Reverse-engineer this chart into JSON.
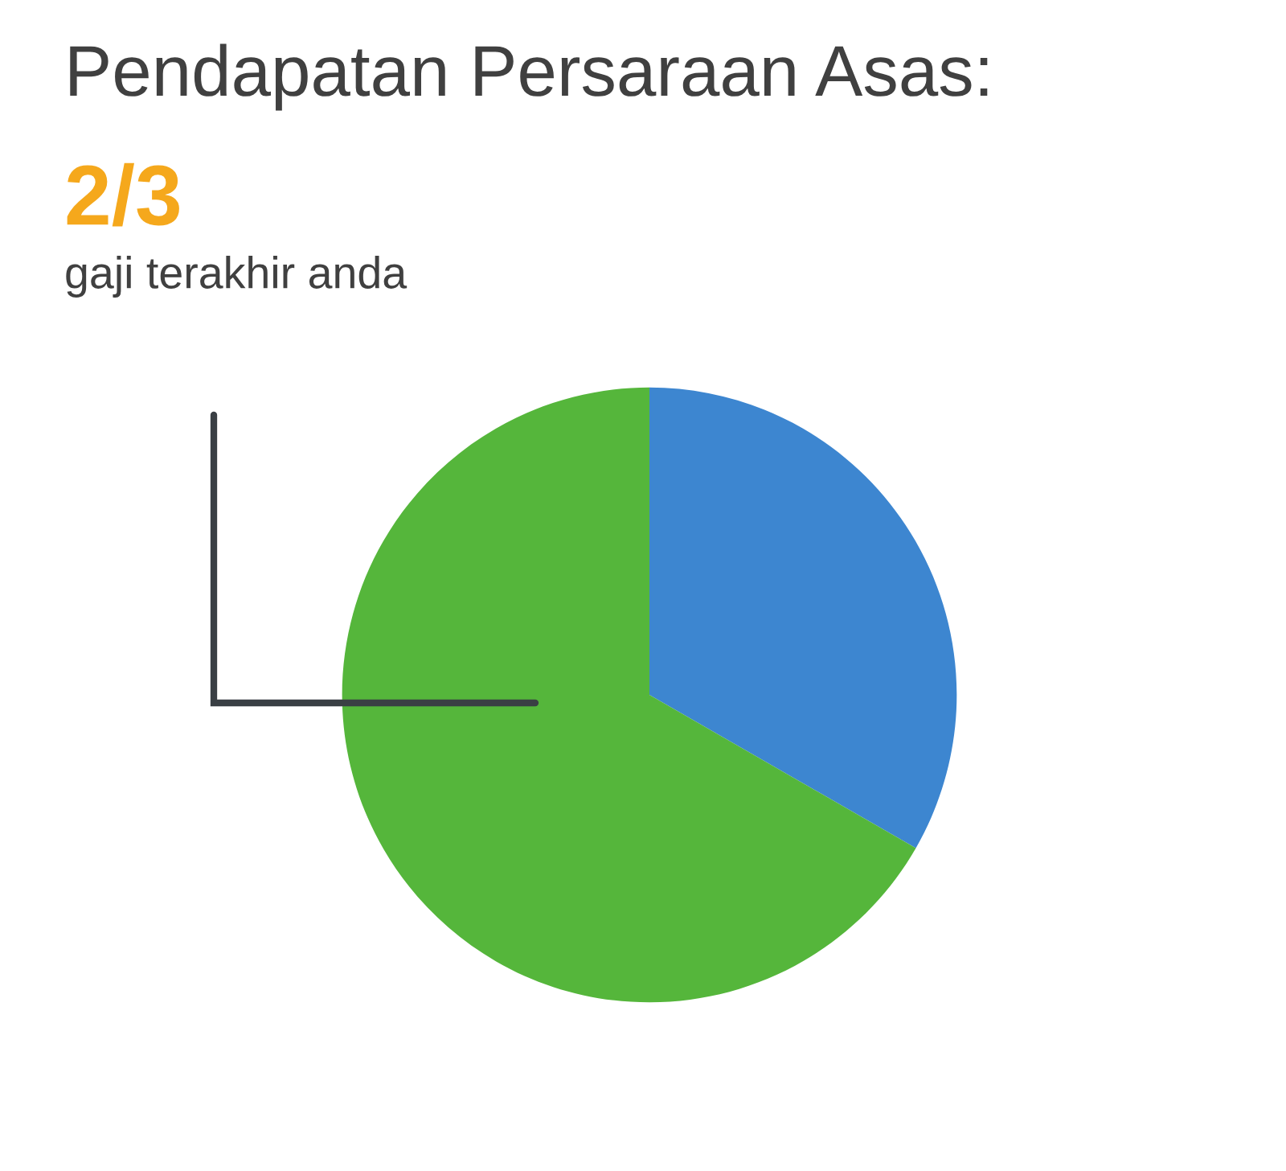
{
  "chart_data": {
    "type": "pie",
    "title": "Pendapatan Persaraan Asas:",
    "subtitle": "2/3",
    "annotations": [
      "gaji terakhir anda"
    ],
    "categories": [
      null,
      null
    ],
    "values": [
      33.3,
      66.7
    ],
    "colors": [
      "#3d86d0",
      "#55b63b"
    ]
  }
}
